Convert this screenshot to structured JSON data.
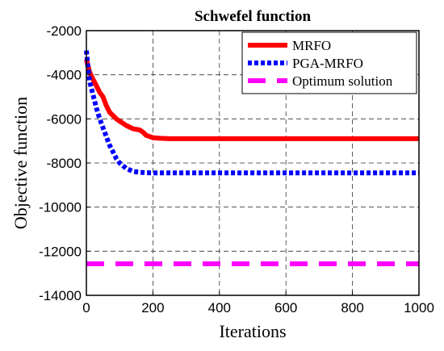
{
  "chart_data": {
    "type": "line",
    "title": "Schwefel function",
    "xlabel": "Iterations",
    "ylabel": "Objective function",
    "xlim": [
      0,
      1000
    ],
    "ylim": [
      -14000,
      -2000
    ],
    "xticks": [
      0,
      200,
      400,
      600,
      800,
      1000
    ],
    "yticks": [
      -2000,
      -4000,
      -6000,
      -8000,
      -10000,
      -12000,
      -14000
    ],
    "grid": true,
    "legend_position": "top-right",
    "series": [
      {
        "name": "MRFO",
        "color": "#ff0000",
        "style": "solid",
        "x": [
          0,
          5,
          10,
          20,
          30,
          40,
          50,
          60,
          70,
          80,
          90,
          100,
          120,
          140,
          160,
          170,
          180,
          190,
          200,
          220,
          250,
          300,
          400,
          500,
          600,
          700,
          800,
          900,
          1000
        ],
        "y": [
          -3300,
          -3600,
          -3900,
          -4200,
          -4500,
          -4800,
          -5000,
          -5400,
          -5700,
          -5850,
          -6000,
          -6100,
          -6300,
          -6450,
          -6500,
          -6600,
          -6750,
          -6800,
          -6850,
          -6880,
          -6900,
          -6900,
          -6900,
          -6900,
          -6900,
          -6900,
          -6900,
          -6900,
          -6900
        ]
      },
      {
        "name": "PGA-MRFO",
        "color": "#0000ff",
        "style": "dotted",
        "x": [
          0,
          5,
          10,
          20,
          30,
          40,
          50,
          60,
          70,
          80,
          90,
          100,
          120,
          140,
          160,
          180,
          200,
          250,
          300,
          400,
          500,
          600,
          700,
          800,
          900,
          1000
        ],
        "y": [
          -2900,
          -3700,
          -4300,
          -4900,
          -5500,
          -6000,
          -6400,
          -6800,
          -7200,
          -7500,
          -7800,
          -8000,
          -8250,
          -8380,
          -8420,
          -8440,
          -8450,
          -8450,
          -8450,
          -8450,
          -8450,
          -8450,
          -8450,
          -8450,
          -8450,
          -8450
        ]
      },
      {
        "name": "Optimum solution",
        "color": "#ff00ff",
        "style": "dashed",
        "x": [
          0,
          1000
        ],
        "y": [
          -12569.5,
          -12569.5
        ]
      }
    ]
  }
}
